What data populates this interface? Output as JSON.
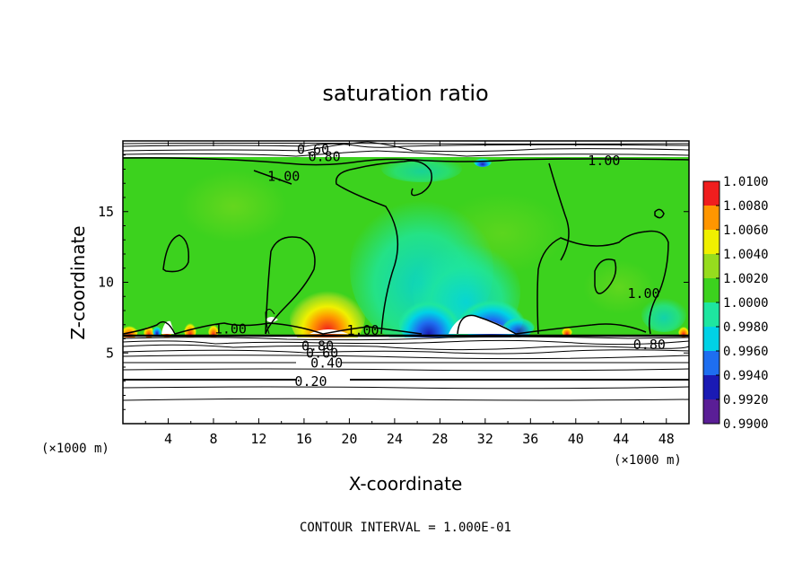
{
  "chart_data": {
    "type": "heatmap",
    "title": "saturation ratio",
    "xlabel": "X-coordinate",
    "ylabel": "Z-coordinate",
    "x_unit_left": "(×1000 m)",
    "x_unit_right": "(×1000 m)",
    "xlim": [
      0,
      50
    ],
    "ylim": [
      0,
      20
    ],
    "x_ticks": [
      4,
      8,
      12,
      16,
      20,
      24,
      28,
      32,
      36,
      40,
      44,
      48
    ],
    "y_ticks": [
      5,
      10,
      15
    ],
    "colorbar": {
      "levels": [
        0.99,
        0.992,
        0.994,
        0.996,
        0.998,
        1.0,
        1.002,
        1.004,
        1.006,
        1.008,
        1.01
      ],
      "labels": [
        "0.9900",
        "0.9920",
        "0.9940",
        "0.9960",
        "0.9980",
        "1.0000",
        "1.0020",
        "1.0040",
        "1.0060",
        "1.0080",
        "1.0100"
      ],
      "colors": [
        "#5a1e96",
        "#1a1ab4",
        "#1e6ef0",
        "#00d2e6",
        "#1ee6a0",
        "#3cd21e",
        "#96dc1e",
        "#f0f000",
        "#ff9600",
        "#f01e1e",
        "#f08c8c"
      ]
    },
    "contour_labels": [
      {
        "text": "0.20",
        "x": 16.6,
        "z": 3.0
      },
      {
        "text": "0.40",
        "x": 18.0,
        "z": 4.3
      },
      {
        "text": "0.60",
        "x": 17.6,
        "z": 5.0
      },
      {
        "text": "0.80",
        "x": 17.2,
        "z": 5.5
      },
      {
        "text": "0.80",
        "x": 46.5,
        "z": 5.6
      },
      {
        "text": "1.00",
        "x": 9.5,
        "z": 6.7
      },
      {
        "text": "1.00",
        "x": 21.2,
        "z": 6.6
      },
      {
        "text": "1.00",
        "x": 14.2,
        "z": 17.5
      },
      {
        "text": "1.00",
        "x": 42.5,
        "z": 18.6
      },
      {
        "text": "1.00",
        "x": 46.0,
        "z": 9.2
      },
      {
        "text": "0.60",
        "x": 16.8,
        "z": 19.4
      },
      {
        "text": "0.80",
        "x": 17.8,
        "z": 18.9
      }
    ],
    "contour_interval_text": "CONTOUR INTERVAL = 1.000E-01",
    "grid": false
  }
}
